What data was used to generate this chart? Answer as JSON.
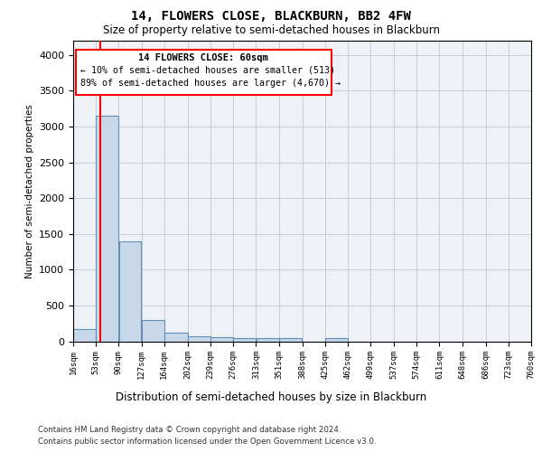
{
  "title": "14, FLOWERS CLOSE, BLACKBURN, BB2 4FW",
  "subtitle": "Size of property relative to semi-detached houses in Blackburn",
  "xlabel": "Distribution of semi-detached houses by size in Blackburn",
  "ylabel": "Number of semi-detached properties",
  "footer1": "Contains HM Land Registry data © Crown copyright and database right 2024.",
  "footer2": "Contains public sector information licensed under the Open Government Licence v3.0.",
  "annotation_title": "14 FLOWERS CLOSE: 60sqm",
  "annotation_line2": "← 10% of semi-detached houses are smaller (513)",
  "annotation_line3": "89% of semi-detached houses are larger (4,670) →",
  "bar_color": "#c8d8e8",
  "bar_edge_color": "#6090b8",
  "red_line_x": 60,
  "bins": [
    16,
    53,
    90,
    127,
    164,
    202,
    239,
    276,
    313,
    351,
    388,
    425,
    462,
    499,
    537,
    574,
    611,
    648,
    686,
    723,
    760
  ],
  "counts": [
    175,
    3150,
    1400,
    300,
    120,
    70,
    60,
    50,
    50,
    50,
    0,
    50,
    0,
    0,
    0,
    0,
    0,
    0,
    0,
    0
  ],
  "ylim": [
    0,
    4200
  ],
  "yticks": [
    0,
    500,
    1000,
    1500,
    2000,
    2500,
    3000,
    3500,
    4000
  ],
  "background_color": "#eef2f7",
  "grid_color": "#c5cdd8"
}
